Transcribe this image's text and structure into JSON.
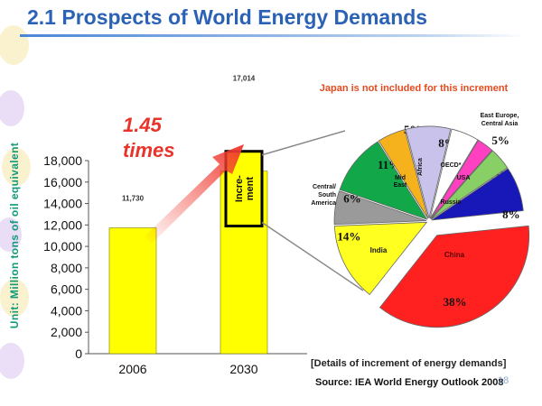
{
  "page": {
    "title": "2.1 Prospects of World Energy Demands",
    "number": "18",
    "colors": {
      "title": "#2b62b5",
      "note": "#e8481c",
      "arrow": "#f03a30"
    }
  },
  "annotations": {
    "multiplier_value": "1.45",
    "multiplier_unit": "times",
    "increment_box_label": "Incre- ment",
    "japan_note": "Japan is not included for this increment",
    "details_label": "[Details of increment of energy demands]",
    "source": "Source: IEA World Energy Outlook 2008"
  },
  "chart_data": [
    {
      "type": "bar",
      "ylabel": "Unit: Million tons of oil equivalent",
      "categories": [
        "2006",
        "2030"
      ],
      "values": [
        11730,
        17014
      ],
      "value_labels": [
        "11,730",
        "17,014"
      ],
      "ylim": [
        0,
        18000
      ],
      "yticks": [
        0,
        2000,
        4000,
        6000,
        8000,
        10000,
        12000,
        14000,
        16000,
        18000
      ],
      "ytick_labels": [
        "0",
        "2,000",
        "4,000",
        "6,000",
        "8,000",
        "10,000",
        "12,000",
        "14,000",
        "16,000",
        "18,000"
      ],
      "increment_value": 5284,
      "bar_color": "#ffff00",
      "grid": false,
      "legend": "none"
    },
    {
      "type": "pie",
      "title": "",
      "slices": [
        {
          "label": "China",
          "value": 38,
          "value_label": "38%",
          "color": "#ff2020"
        },
        {
          "label": "India",
          "value": 14,
          "value_label": "14%",
          "color": "#ffff20"
        },
        {
          "label": "Central/ South America",
          "value": 6,
          "value_label": "6%",
          "color": "#9a9a9a"
        },
        {
          "label": "Mid East",
          "value": 11,
          "value_label": "11%",
          "color": "#12a84a"
        },
        {
          "label": "Africa",
          "value": 5,
          "value_label": "5%",
          "color": "#f6b21c"
        },
        {
          "label": "OECD* USA Russia",
          "value": 8,
          "value_label": "8%",
          "color": "#c9c3ec"
        },
        {
          "label": "East Europe, Central Asia",
          "value": 5,
          "value_label": "5%",
          "color": "#ffffff"
        },
        {
          "label": "",
          "value": 3,
          "value_label": "3%",
          "color": "#ff40c0"
        },
        {
          "label": "",
          "value": 4,
          "value_label": "4%",
          "color": "#88d066"
        },
        {
          "label": "Asia**",
          "value": 8,
          "value_label": "8%",
          "color": "#1818b8"
        }
      ],
      "legend": "none"
    }
  ]
}
